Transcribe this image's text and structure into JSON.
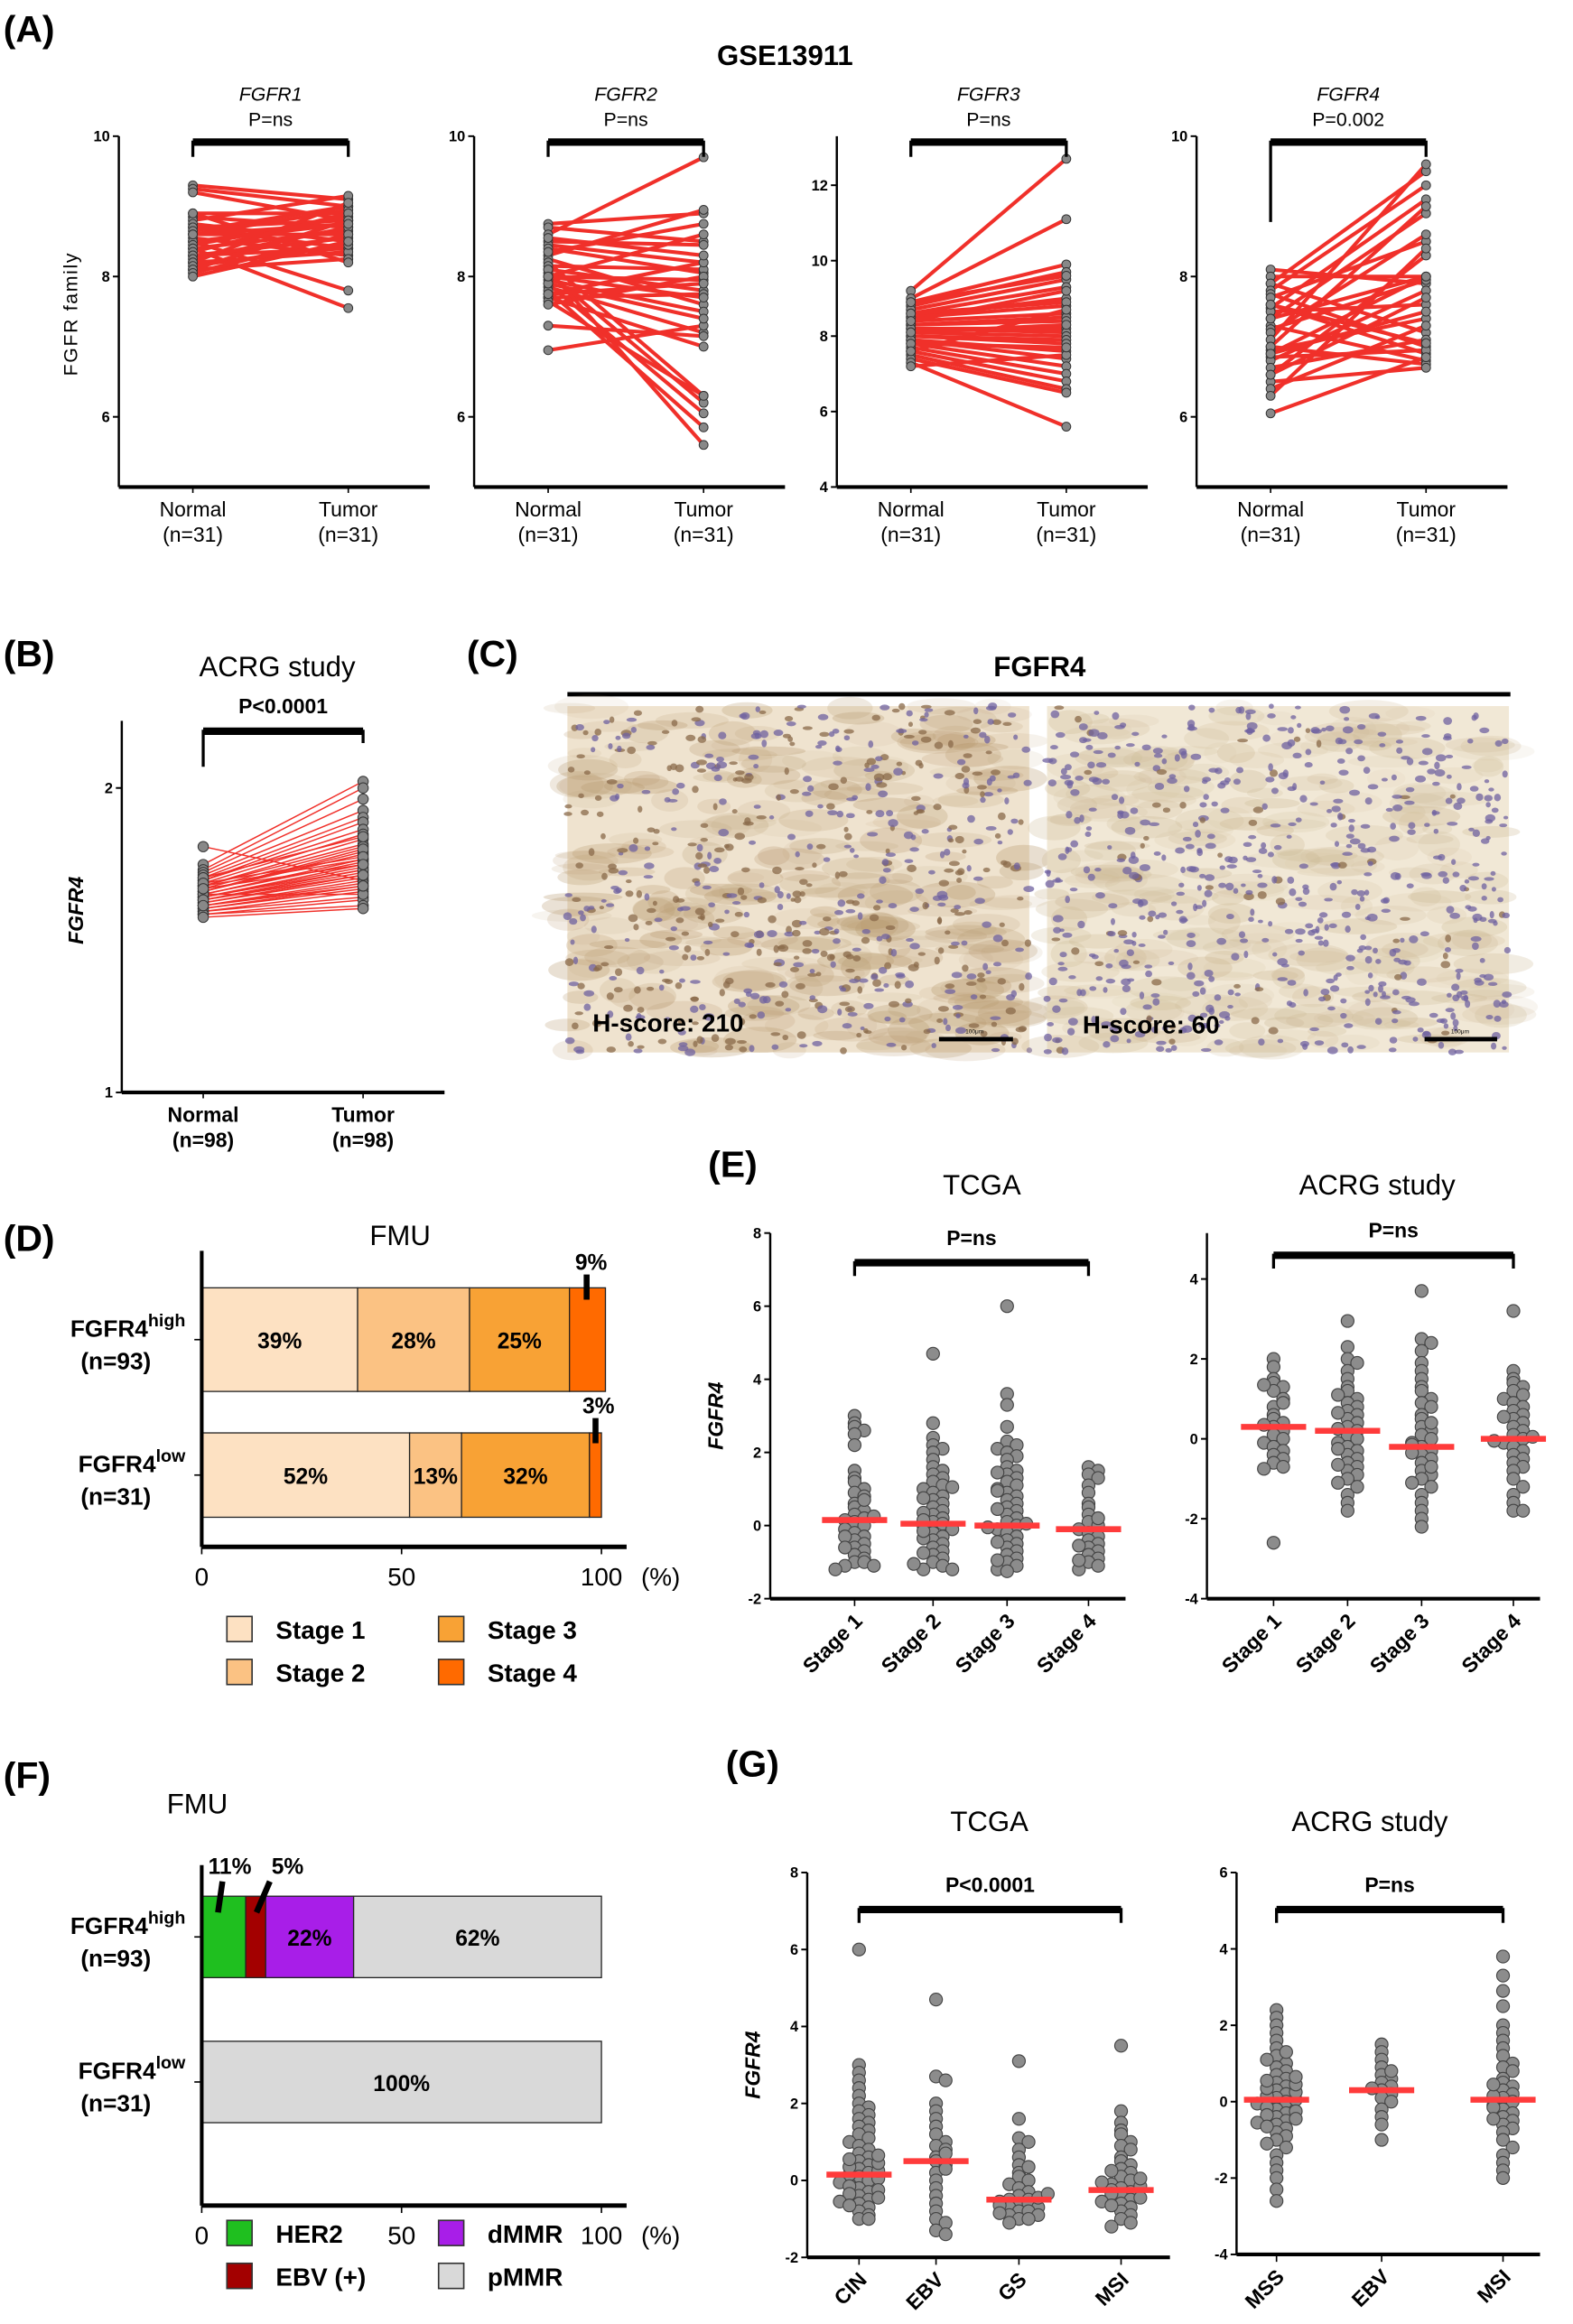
{
  "panel_labels": {
    "A": "(A)",
    "B": "(B)",
    "C": "(C)",
    "D": "(D)",
    "E": "(E)",
    "F": "(F)",
    "G": "(G)"
  },
  "panel_A": {
    "title": "GSE13911",
    "ylabel": "FGFR family"
  },
  "panel_C": {
    "title": "FGFR4",
    "images": [
      {
        "hscore": "H-score: 210",
        "scale_bar": "100μm"
      },
      {
        "hscore": "H-score: 60",
        "scale_bar": "100μm"
      }
    ]
  },
  "colors": {
    "pair_line": "#f0302a",
    "dot": "#8c8c8c",
    "median": "#ff3b3b",
    "stage1": "#fde1c2",
    "stage2": "#fbc283",
    "stage3": "#f8a235",
    "stage4": "#ff6a00",
    "HER2": "#1fbf1f",
    "EBV": "#a30000",
    "dMMR": "#a81ee8",
    "pMMR": "#d9d9d9"
  },
  "chart_data": [
    {
      "id": "A1",
      "type": "paired",
      "title": "FGFR1",
      "p": "P=ns",
      "ylim": [
        5,
        10
      ],
      "yticks": [
        6,
        8,
        10
      ],
      "categories": [
        "Normal",
        "Tumor"
      ],
      "n": [
        "(n=31)",
        "(n=31)"
      ],
      "normal": [
        9.3,
        9.25,
        9.2,
        8.9,
        8.85,
        8.8,
        8.75,
        8.7,
        8.7,
        8.65,
        8.6,
        8.6,
        8.55,
        8.5,
        8.5,
        8.45,
        8.4,
        8.4,
        8.35,
        8.3,
        8.3,
        8.25,
        8.2,
        8.2,
        8.15,
        8.1,
        8.1,
        8.05,
        8.0,
        8.9,
        8.6
      ],
      "tumor": [
        9.1,
        9.0,
        8.8,
        8.9,
        8.7,
        9.15,
        8.5,
        8.8,
        8.4,
        9.0,
        8.6,
        8.95,
        8.3,
        8.75,
        7.8,
        8.85,
        8.65,
        7.55,
        8.9,
        8.4,
        8.55,
        8.7,
        8.35,
        9.05,
        8.45,
        8.8,
        8.25,
        8.6,
        8.5,
        8.2,
        8.75
      ]
    },
    {
      "id": "A2",
      "type": "paired",
      "title": "FGFR2",
      "p": "P=ns",
      "ylim": [
        5,
        10
      ],
      "yticks": [
        6,
        8,
        10
      ],
      "categories": [
        "Normal",
        "Tumor"
      ],
      "n": [
        "(n=31)",
        "(n=31)"
      ],
      "normal": [
        8.75,
        8.7,
        8.6,
        8.5,
        8.45,
        8.4,
        8.3,
        8.25,
        8.2,
        8.15,
        8.1,
        8.05,
        8.0,
        8.0,
        7.95,
        7.9,
        7.85,
        7.8,
        7.75,
        7.7,
        7.7,
        7.65,
        7.6,
        7.3,
        6.95,
        8.35,
        8.1,
        7.9,
        8.55,
        8.0,
        7.75
      ],
      "tumor": [
        8.9,
        8.5,
        9.7,
        8.45,
        8.2,
        8.05,
        8.95,
        7.6,
        6.3,
        8.1,
        7.8,
        6.2,
        7.95,
        8.6,
        7.5,
        6.05,
        7.2,
        5.85,
        8.2,
        7.0,
        7.75,
        6.3,
        8.0,
        7.15,
        7.3,
        8.75,
        5.6,
        7.4,
        8.3,
        7.7,
        7.9
      ]
    },
    {
      "id": "A3",
      "type": "paired",
      "title": "FGFR3",
      "p": "P=ns",
      "ylim": [
        4,
        13.3
      ],
      "yticks": [
        4,
        6,
        8,
        10,
        12
      ],
      "categories": [
        "Normal",
        "Tumor"
      ],
      "n": [
        "(n=31)",
        "(n=31)"
      ],
      "normal": [
        9.2,
        9.0,
        8.9,
        8.8,
        8.7,
        8.6,
        8.5,
        8.5,
        8.4,
        8.3,
        8.3,
        8.2,
        8.2,
        8.1,
        8.0,
        8.0,
        7.9,
        7.9,
        7.8,
        7.7,
        7.6,
        7.5,
        7.4,
        7.3,
        7.2,
        8.6,
        8.4,
        8.1,
        7.8,
        8.9,
        7.6
      ],
      "tumor": [
        12.7,
        11.1,
        9.9,
        9.7,
        9.5,
        9.3,
        9.0,
        8.8,
        8.6,
        8.5,
        8.4,
        8.2,
        8.1,
        8.0,
        7.9,
        7.8,
        7.6,
        7.4,
        7.2,
        7.0,
        6.8,
        6.6,
        6.5,
        5.6,
        7.5,
        8.9,
        9.2,
        8.3,
        7.7,
        9.6,
        8.7
      ]
    },
    {
      "id": "A4",
      "type": "paired",
      "title": "FGFR4",
      "p": "P=0.002",
      "ylim": [
        5,
        10
      ],
      "yticks": [
        6,
        8,
        10
      ],
      "categories": [
        "Normal",
        "Tumor"
      ],
      "n": [
        "(n=31)",
        "(n=31)"
      ],
      "normal": [
        8.1,
        8.0,
        7.9,
        7.9,
        7.8,
        7.75,
        7.7,
        7.6,
        7.55,
        7.5,
        7.4,
        7.3,
        7.25,
        7.2,
        7.1,
        7.0,
        6.95,
        6.9,
        6.85,
        6.8,
        6.7,
        6.6,
        6.5,
        6.4,
        6.3,
        6.05,
        7.6,
        7.0,
        6.9,
        7.4,
        6.6
      ],
      "tumor": [
        7.9,
        8.0,
        9.5,
        7.2,
        9.3,
        7.0,
        8.5,
        6.9,
        9.1,
        7.6,
        8.9,
        6.8,
        7.95,
        8.6,
        9.6,
        6.75,
        7.4,
        8.0,
        6.95,
        7.8,
        7.1,
        8.3,
        6.7,
        7.3,
        8.4,
        6.85,
        7.05,
        9.0,
        7.5,
        8.0,
        7.7
      ]
    },
    {
      "id": "B",
      "type": "paired",
      "title": "ACRG study",
      "p": "P<0.0001",
      "ylabel": "FGFR4",
      "scale": "log",
      "ylim": [
        1,
        2.33
      ],
      "yticks": [
        1,
        2
      ],
      "categories": [
        "Normal",
        "Tumor"
      ],
      "n": [
        "(n=98)",
        "(n=98)"
      ],
      "normal": [
        1.75,
        1.68,
        1.66,
        1.65,
        1.64,
        1.63,
        1.62,
        1.62,
        1.61,
        1.6,
        1.6,
        1.59,
        1.58,
        1.58,
        1.57,
        1.57,
        1.56,
        1.56,
        1.55,
        1.55,
        1.54,
        1.54,
        1.53,
        1.53,
        1.52,
        1.52,
        1.51,
        1.51,
        1.5,
        1.5,
        1.49,
        1.6,
        1.58,
        1.56,
        1.63,
        1.61,
        1.57,
        1.55,
        1.53,
        1.59
      ],
      "tumor": [
        1.62,
        2.03,
        2.0,
        1.95,
        1.9,
        1.87,
        1.85,
        1.82,
        1.8,
        1.78,
        1.76,
        1.75,
        1.73,
        1.72,
        1.7,
        1.69,
        1.68,
        1.67,
        1.66,
        1.65,
        1.64,
        1.63,
        1.62,
        1.61,
        1.6,
        1.59,
        1.58,
        1.56,
        1.55,
        1.53,
        1.52,
        1.7,
        1.74,
        1.66,
        1.79,
        1.71,
        1.57,
        1.64,
        1.6,
        1.68
      ]
    },
    {
      "id": "D",
      "type": "bar",
      "stacked": true,
      "title": "FMU",
      "xlim": [
        0,
        100
      ],
      "xticks": [
        "0",
        "50",
        "100"
      ],
      "xunit": "(%)",
      "rows": [
        {
          "label": "FGFR4",
          "sup": "high",
          "n": "(n=93)",
          "values": [
            39,
            28,
            25,
            9
          ],
          "labels": [
            "39%",
            "28%",
            "25%",
            "9%"
          ]
        },
        {
          "label": "FGFR4",
          "sup": "low",
          "n": "(n=31)",
          "values": [
            52,
            13,
            32,
            3
          ],
          "labels": [
            "52%",
            "13%",
            "32%",
            "3%"
          ]
        }
      ],
      "legend": [
        "Stage 1",
        "Stage 2",
        "Stage 3",
        "Stage 4"
      ],
      "legend_keys": [
        "stage1",
        "stage2",
        "stage3",
        "stage4"
      ]
    },
    {
      "id": "E1",
      "type": "scatter",
      "title": "TCGA",
      "p": "P=ns",
      "ylabel": "FGFR4",
      "ylim": [
        -2,
        8
      ],
      "yticks": [
        -2,
        0,
        2,
        4,
        6,
        8
      ],
      "categories": [
        "Stage 1",
        "Stage 2",
        "Stage 3",
        "Stage 4"
      ],
      "medians": [
        0.15,
        0.05,
        0.0,
        -0.1
      ],
      "values": [
        [
          3.0,
          2.8,
          2.7,
          2.6,
          2.5,
          2.2,
          1.5,
          1.3,
          1.2,
          1.0,
          0.9,
          0.8,
          0.6,
          0.5,
          0.4,
          0.3,
          0.2,
          0.15,
          0.1,
          0.0,
          -0.1,
          -0.2,
          -0.3,
          -0.4,
          -0.5,
          -0.6,
          -0.7,
          -0.8,
          -0.9,
          -1.0,
          -1.0,
          -1.1,
          -1.1,
          -1.2,
          0.7,
          -0.3,
          0.25,
          -0.6
        ],
        [
          4.7,
          2.8,
          2.4,
          2.2,
          2.1,
          2.0,
          1.8,
          1.6,
          1.5,
          1.4,
          1.3,
          1.2,
          1.1,
          1.0,
          0.9,
          0.8,
          0.7,
          0.6,
          0.5,
          0.4,
          0.3,
          0.2,
          0.1,
          0.05,
          0.0,
          -0.1,
          -0.2,
          -0.3,
          -0.4,
          -0.5,
          -0.6,
          -0.7,
          -0.8,
          -0.9,
          -1.0,
          -1.1,
          -1.2,
          -1.2,
          0.35,
          -0.35,
          0.75,
          -0.75,
          0.15,
          -0.15,
          1.05,
          -1.05
        ],
        [
          6.0,
          3.6,
          3.3,
          2.7,
          2.3,
          2.2,
          2.1,
          2.0,
          1.9,
          1.8,
          1.6,
          1.5,
          1.4,
          1.3,
          1.2,
          1.1,
          1.0,
          0.9,
          0.8,
          0.7,
          0.6,
          0.5,
          0.4,
          0.3,
          0.2,
          0.1,
          0.0,
          -0.1,
          -0.2,
          -0.3,
          -0.4,
          -0.5,
          -0.6,
          -0.7,
          -0.8,
          -0.9,
          -1.0,
          -1.1,
          -1.2,
          -1.25,
          0.45,
          -0.45,
          0.05,
          -0.05,
          0.95,
          -0.95,
          1.45
        ],
        [
          1.6,
          1.5,
          1.4,
          1.3,
          1.1,
          0.9,
          0.6,
          0.5,
          0.3,
          0.1,
          0.0,
          -0.1,
          -0.2,
          -0.3,
          -0.4,
          -0.5,
          -0.6,
          -0.7,
          -0.8,
          -0.9,
          -1.0,
          -1.1,
          -1.2,
          0.2,
          -0.55,
          -0.95
        ]
      ]
    },
    {
      "id": "E2",
      "type": "scatter",
      "title": "ACRG study",
      "p": "P=ns",
      "ylim": [
        -4,
        5.15
      ],
      "yticks": [
        -4,
        -2,
        0,
        2,
        4
      ],
      "categories": [
        "Stage 1",
        "Stage 2",
        "Stage 3",
        "Stage 4"
      ],
      "medians": [
        0.3,
        0.2,
        -0.2,
        0.0
      ],
      "values": [
        [
          2.0,
          1.8,
          1.5,
          1.4,
          1.3,
          1.2,
          1.0,
          0.8,
          0.6,
          0.5,
          0.4,
          0.3,
          0.2,
          0.1,
          0.0,
          -0.1,
          -0.2,
          -0.3,
          -0.4,
          -0.5,
          -0.6,
          -0.7,
          -0.75,
          -2.6,
          0.9,
          0.35,
          1.35
        ],
        [
          2.95,
          2.3,
          2.0,
          1.9,
          1.7,
          1.5,
          1.3,
          1.2,
          1.0,
          0.9,
          0.8,
          0.7,
          0.6,
          0.5,
          0.4,
          0.3,
          0.2,
          0.1,
          0.0,
          -0.1,
          -0.2,
          -0.3,
          -0.4,
          -0.5,
          -0.6,
          -0.7,
          -0.8,
          -0.9,
          -1.0,
          -1.2,
          -1.4,
          -1.6,
          -1.8,
          0.25,
          -0.25,
          0.65,
          -0.65,
          1.1,
          -1.1
        ],
        [
          3.7,
          2.5,
          2.4,
          2.2,
          1.9,
          1.7,
          1.5,
          1.3,
          1.2,
          1.0,
          0.9,
          0.8,
          0.6,
          0.5,
          0.3,
          0.2,
          0.1,
          0.0,
          -0.1,
          -0.2,
          -0.3,
          -0.4,
          -0.5,
          -0.6,
          -0.8,
          -0.9,
          -1.0,
          -1.2,
          -1.4,
          -1.6,
          -1.8,
          -2.0,
          -2.2,
          -0.15,
          -0.35,
          0.4,
          -0.7,
          -1.1
        ],
        [
          3.2,
          1.7,
          1.5,
          1.4,
          1.3,
          1.2,
          1.1,
          1.0,
          0.9,
          0.8,
          0.7,
          0.6,
          0.5,
          0.4,
          0.3,
          0.2,
          0.1,
          0.0,
          -0.1,
          -0.2,
          -0.3,
          -0.4,
          -0.5,
          -0.6,
          -0.7,
          -0.8,
          -1.0,
          -1.2,
          -1.4,
          -1.6,
          -1.8,
          -1.8,
          0.05,
          -0.05,
          0.55
        ]
      ]
    },
    {
      "id": "F",
      "type": "bar",
      "stacked": true,
      "title": "FMU",
      "xlim": [
        0,
        100
      ],
      "xticks": [
        "0",
        "50",
        "100"
      ],
      "xunit": "(%)",
      "rows": [
        {
          "label": "FGFR4",
          "sup": "high",
          "n": "(n=93)",
          "values": [
            11,
            5,
            22,
            62
          ],
          "labels": [
            "11%",
            "5%",
            "22%",
            "62%"
          ]
        },
        {
          "label": "FGFR4",
          "sup": "low",
          "n": "(n=31)",
          "values": [
            0,
            0,
            0,
            100
          ],
          "labels": [
            "",
            "",
            "",
            "100%"
          ]
        }
      ],
      "legend": [
        "HER2",
        "EBV (+)",
        "dMMR",
        "pMMR"
      ],
      "legend_keys": [
        "HER2",
        "EBV",
        "dMMR",
        "pMMR"
      ]
    },
    {
      "id": "G1",
      "type": "scatter",
      "title": "TCGA",
      "p": "P<0.0001",
      "ylabel": "FGFR4",
      "ylim": [
        -2,
        8
      ],
      "yticks": [
        -2,
        0,
        2,
        4,
        6,
        8
      ],
      "categories": [
        "CIN",
        "EBV",
        "GS",
        "MSI"
      ],
      "medians": [
        0.15,
        0.5,
        -0.5,
        -0.25
      ],
      "values": [
        [
          6.0,
          3.0,
          2.8,
          2.6,
          2.4,
          2.2,
          2.0,
          1.9,
          1.8,
          1.7,
          1.6,
          1.5,
          1.4,
          1.3,
          1.2,
          1.1,
          1.0,
          0.9,
          0.8,
          0.7,
          0.6,
          0.5,
          0.4,
          0.3,
          0.2,
          0.1,
          0.0,
          -0.1,
          -0.2,
          -0.3,
          -0.4,
          -0.5,
          -0.6,
          -0.7,
          -0.8,
          -0.9,
          -1.0,
          -1.0,
          0.15,
          0.05,
          -0.05,
          -0.15,
          0.25,
          0.35,
          -0.25,
          -0.35,
          0.45,
          -0.45,
          0.55,
          -0.55,
          0.65,
          -0.65
        ],
        [
          4.7,
          2.7,
          2.6,
          2.0,
          1.8,
          1.6,
          1.4,
          1.2,
          1.0,
          0.9,
          0.8,
          0.6,
          0.5,
          0.4,
          0.2,
          0.0,
          -0.2,
          -0.4,
          -0.6,
          -0.8,
          -1.0,
          -1.1,
          -1.3,
          -1.4,
          0.3,
          0.7
        ],
        [
          3.1,
          1.6,
          1.1,
          1.0,
          0.8,
          0.6,
          0.4,
          0.2,
          0.1,
          0.0,
          -0.1,
          -0.2,
          -0.3,
          -0.4,
          -0.5,
          -0.5,
          -0.6,
          -0.6,
          -0.7,
          -0.7,
          -0.8,
          -0.8,
          -0.9,
          -0.9,
          -1.0,
          -1.0,
          -1.1,
          -0.45,
          -0.55,
          -0.65,
          -0.35,
          0.35,
          -0.85
        ],
        [
          3.5,
          1.8,
          1.5,
          1.3,
          1.2,
          1.0,
          0.9,
          0.8,
          0.6,
          0.5,
          0.4,
          0.3,
          0.2,
          0.1,
          0.0,
          -0.1,
          -0.2,
          -0.3,
          -0.4,
          -0.5,
          -0.6,
          -0.7,
          -0.8,
          -0.9,
          -1.0,
          -1.1,
          -1.2,
          -0.25,
          -0.15,
          -0.35,
          -0.45,
          0.05,
          -0.05,
          -0.55,
          0.25,
          -0.65
        ]
      ]
    },
    {
      "id": "G2",
      "type": "scatter",
      "title": "ACRG study",
      "p": "P=ns",
      "ylim": [
        -4,
        6
      ],
      "yticks": [
        -4,
        -2,
        0,
        2,
        4,
        6
      ],
      "categories": [
        "MSS",
        "EBV",
        "MSI"
      ],
      "medians": [
        0.05,
        0.3,
        0.05
      ],
      "values": [
        [
          2.4,
          2.2,
          2.0,
          1.8,
          1.6,
          1.4,
          1.2,
          1.0,
          0.9,
          0.8,
          0.7,
          0.6,
          0.5,
          0.4,
          0.3,
          0.2,
          0.1,
          0.0,
          -0.1,
          -0.2,
          -0.3,
          -0.4,
          -0.5,
          -0.6,
          -0.7,
          -0.8,
          -0.9,
          -1.0,
          -1.2,
          -1.4,
          -1.6,
          -1.8,
          -2.0,
          -2.3,
          -2.6,
          0.05,
          -0.05,
          0.15,
          -0.15,
          0.25,
          -0.25,
          0.35,
          -0.35,
          0.45,
          -0.45,
          0.55,
          -0.55,
          0.65,
          -0.65,
          1.1,
          -1.1,
          1.3
        ],
        [
          1.5,
          1.3,
          1.1,
          0.9,
          0.7,
          0.6,
          0.5,
          0.4,
          0.3,
          0.2,
          0.1,
          0.0,
          -0.2,
          -0.4,
          -0.6,
          -1.0,
          0.8,
          0.35
        ],
        [
          3.8,
          3.3,
          2.9,
          2.5,
          2.0,
          1.8,
          1.6,
          1.4,
          1.2,
          1.0,
          0.9,
          0.8,
          0.6,
          0.5,
          0.4,
          0.3,
          0.2,
          0.1,
          0.0,
          -0.1,
          -0.2,
          -0.3,
          -0.4,
          -0.5,
          -0.6,
          -0.7,
          -0.8,
          -1.0,
          -1.2,
          -1.4,
          -1.6,
          -1.8,
          -2.0,
          0.15,
          -0.15,
          0.45,
          -0.45
        ]
      ]
    }
  ]
}
